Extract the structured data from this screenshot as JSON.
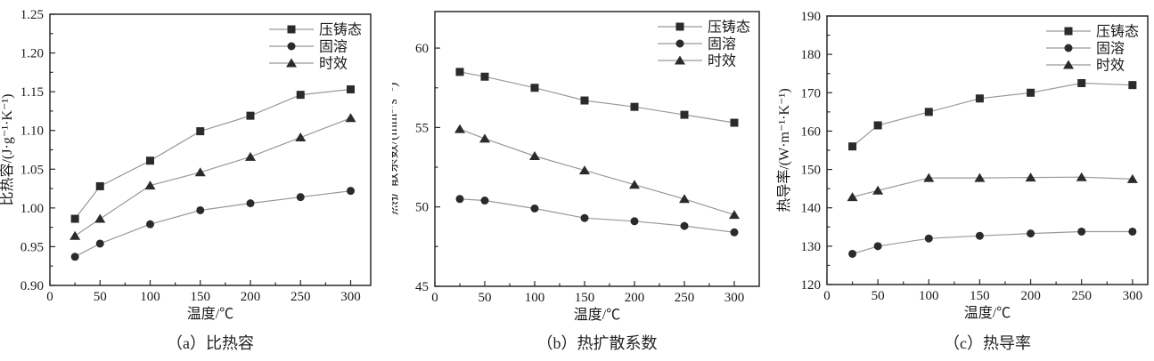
{
  "figure": {
    "colors": {
      "marker": "#2b2b2b",
      "line": "#999999",
      "frame": "#2a2a2a",
      "text": "#1a1a1a"
    }
  },
  "chart_data": [
    {
      "id": "a",
      "type": "line",
      "caption": "（a）比热容",
      "xlabel": "温度/℃",
      "ylabel": "比热容/(J·g⁻¹·K⁻¹)",
      "xlim": [
        0,
        320
      ],
      "ylim": [
        0.9,
        1.25
      ],
      "x_ticks": {
        "values": [
          0,
          50,
          100,
          150,
          200,
          250,
          300
        ],
        "labels": [
          "0",
          "50",
          "100",
          "150",
          "200",
          "250",
          "300"
        ]
      },
      "y_ticks": {
        "values": [
          0.9,
          0.95,
          1.0,
          1.05,
          1.1,
          1.15,
          1.2,
          1.25
        ],
        "labels": [
          "0.90",
          "0.95",
          "1.00",
          "1.05",
          "1.10",
          "1.15",
          "1.20",
          "1.25"
        ]
      },
      "legend_position": "top-right",
      "grid": false,
      "x": [
        25,
        50,
        100,
        150,
        200,
        250,
        300
      ],
      "series": [
        {
          "name": "压铸态",
          "marker": "square",
          "values": [
            0.986,
            1.028,
            1.061,
            1.099,
            1.119,
            1.146,
            1.153
          ]
        },
        {
          "name": "固溶",
          "marker": "circle",
          "values": [
            0.937,
            0.954,
            0.979,
            0.997,
            1.006,
            1.014,
            1.022
          ]
        },
        {
          "name": "时效",
          "marker": "triangle",
          "values": [
            0.964,
            0.986,
            1.029,
            1.046,
            1.066,
            1.091,
            1.116
          ]
        }
      ]
    },
    {
      "id": "b",
      "type": "line",
      "caption": "（b）热扩散系数",
      "xlabel": "温度/℃",
      "ylabel": "热扩散系数/(mm²·s⁻¹)",
      "xlim": [
        0,
        325
      ],
      "ylim": [
        45,
        62.3
      ],
      "x_ticks": {
        "values": [
          0,
          50,
          100,
          150,
          200,
          250,
          300
        ],
        "labels": [
          "0",
          "50",
          "100",
          "150",
          "200",
          "250",
          "300"
        ]
      },
      "y_ticks": {
        "values": [
          45,
          50,
          55,
          60
        ],
        "labels": [
          "45",
          "50",
          "55",
          "60"
        ]
      },
      "legend_position": "top-right",
      "grid": false,
      "x": [
        25,
        50,
        100,
        150,
        200,
        250,
        300
      ],
      "series": [
        {
          "name": "压铸态",
          "marker": "square",
          "values": [
            58.5,
            58.2,
            57.5,
            56.7,
            56.3,
            55.8,
            55.3
          ]
        },
        {
          "name": "固溶",
          "marker": "circle",
          "values": [
            50.5,
            50.4,
            49.9,
            49.3,
            49.1,
            48.8,
            48.4
          ]
        },
        {
          "name": "时效",
          "marker": "triangle",
          "values": [
            54.9,
            54.3,
            53.2,
            52.3,
            51.4,
            50.5,
            49.5
          ]
        }
      ]
    },
    {
      "id": "c",
      "type": "line",
      "caption": "（c）热导率",
      "xlabel": "温度/℃",
      "ylabel": "热导率/(W·m⁻¹·K⁻¹)",
      "xlim": [
        0,
        315
      ],
      "ylim": [
        120,
        190
      ],
      "x_ticks": {
        "values": [
          0,
          50,
          100,
          150,
          200,
          250,
          300
        ],
        "labels": [
          "0",
          "50",
          "100",
          "150",
          "200",
          "250",
          "300"
        ]
      },
      "y_ticks": {
        "values": [
          120,
          130,
          140,
          150,
          160,
          170,
          180,
          190
        ],
        "labels": [
          "120",
          "130",
          "140",
          "150",
          "160",
          "170",
          "180",
          "190"
        ]
      },
      "legend_position": "top-right",
      "grid": false,
      "x": [
        25,
        50,
        100,
        150,
        200,
        250,
        300
      ],
      "series": [
        {
          "name": "压铸态",
          "marker": "square",
          "values": [
            156,
            161.5,
            165,
            168.5,
            170,
            172.5,
            172
          ]
        },
        {
          "name": "固溶",
          "marker": "circle",
          "values": [
            128,
            130,
            132,
            132.7,
            133.3,
            133.8,
            133.8
          ]
        },
        {
          "name": "时效",
          "marker": "triangle",
          "values": [
            142.8,
            144.5,
            147.8,
            147.8,
            147.9,
            148,
            147.5
          ]
        }
      ]
    }
  ]
}
